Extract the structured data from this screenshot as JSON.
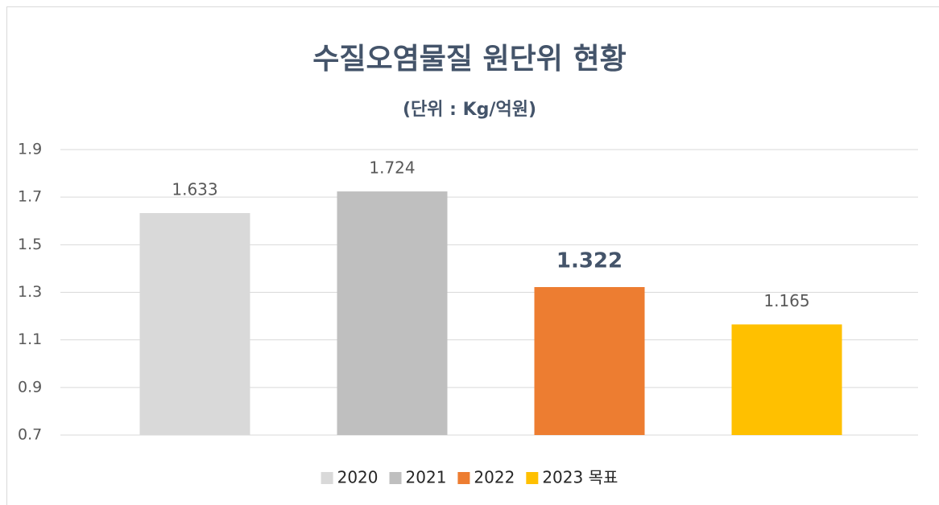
{
  "chart_data": {
    "type": "bar",
    "title": "수질오염물질 원단위 현황",
    "subtitle": "(단위 : Kg/억원)",
    "categories": [
      null
    ],
    "series": [
      {
        "name": "2020",
        "color": "#d9d9d9",
        "values": [
          1.633
        ]
      },
      {
        "name": "2021",
        "color": "#bfbfbf",
        "values": [
          1.724
        ]
      },
      {
        "name": "2022",
        "color": "#ed7d31",
        "values": [
          1.322
        ]
      },
      {
        "name": "2023 목표",
        "color": "#ffc000",
        "values": [
          1.165
        ]
      }
    ],
    "ylim": [
      0.7,
      1.9
    ],
    "yticks": [
      0.7,
      0.9,
      1.1,
      1.3,
      1.5,
      1.7,
      1.9
    ],
    "grid": true,
    "legend": "bottom"
  }
}
